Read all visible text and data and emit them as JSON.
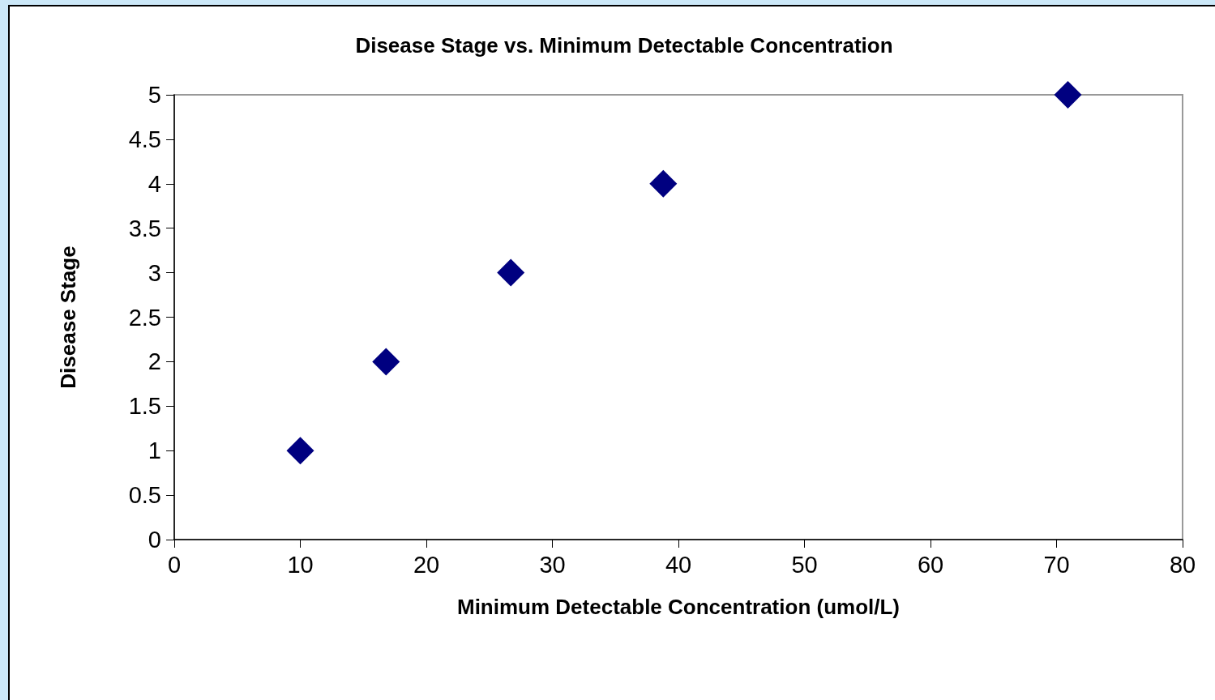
{
  "chart_data": {
    "type": "scatter",
    "title": "Disease Stage vs. Minimum Detectable Concentration",
    "xlabel": "Minimum Detectable Concentration (umol/L)",
    "ylabel": "Disease Stage",
    "x": [
      10.0,
      16.8,
      26.7,
      38.8,
      70.9
    ],
    "series": [
      {
        "color": "#000080",
        "values": [
          1,
          2,
          3,
          4,
          5
        ]
      }
    ],
    "xlim": [
      0,
      80
    ],
    "xticks": [
      0,
      10,
      20,
      30,
      40,
      50,
      60,
      70,
      80
    ],
    "ylim": [
      0,
      5
    ],
    "yticks": [
      0,
      0.5,
      1,
      1.5,
      2,
      2.5,
      3,
      3.5,
      4,
      4.5,
      5
    ],
    "grid": false,
    "marker": "diamond"
  }
}
